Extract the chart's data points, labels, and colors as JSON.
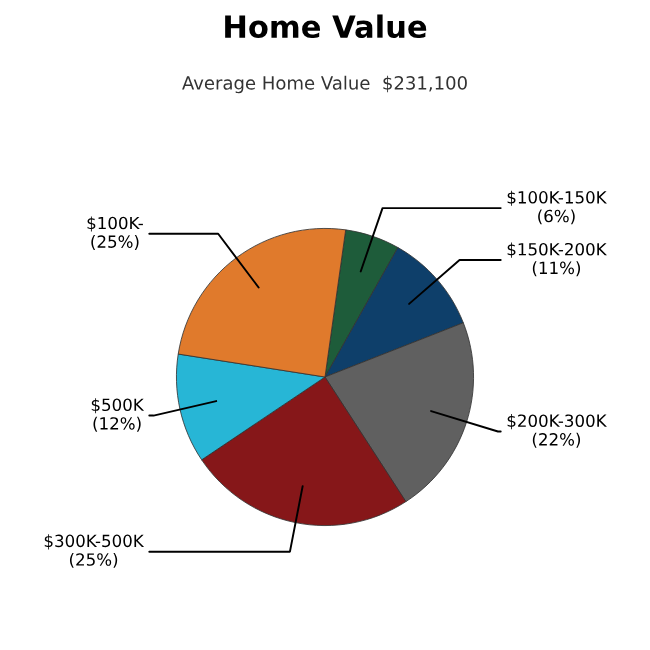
{
  "chart_data": {
    "type": "pie",
    "title": "Home Value",
    "subtitle": "Average Home Value  $231,100",
    "categories": [
      "$100K-150K",
      "$150K-200K",
      "$200K-300K",
      "$300K-500K",
      "$500K",
      "$100K-"
    ],
    "values": [
      6,
      11,
      22,
      25,
      12,
      25
    ],
    "value_labels": [
      "(6%)",
      "(11%)",
      "(22%)",
      "(25%)",
      "(12%)",
      "(25%)"
    ],
    "colors": [
      "#1e5c3a",
      "#0e3f6a",
      "#606060",
      "#861719",
      "#27b6d6",
      "#e07a2c"
    ]
  }
}
